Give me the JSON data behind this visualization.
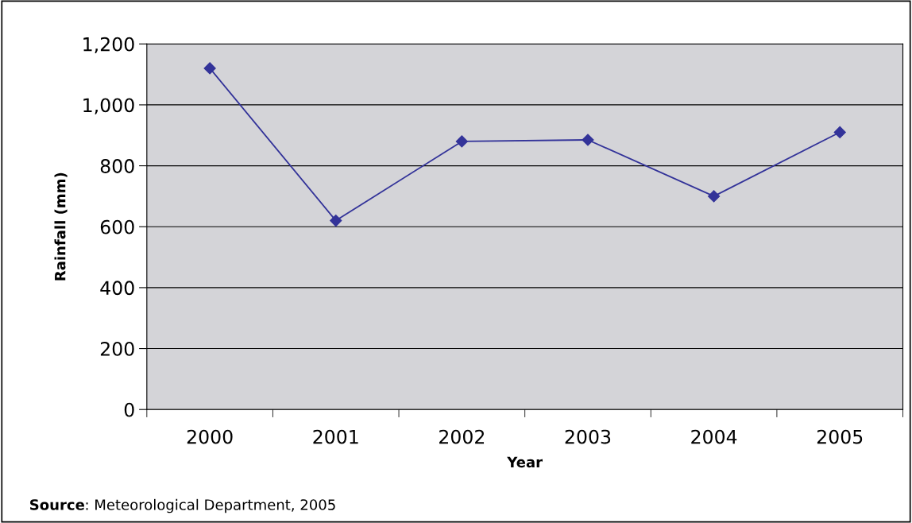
{
  "chart_data": {
    "type": "line",
    "xlabel": "Year",
    "ylabel": "Rainfall (mm)",
    "categories": [
      "2000",
      "2001",
      "2002",
      "2003",
      "2004",
      "2005"
    ],
    "series": [
      {
        "color": "#333399",
        "values": [
          1120,
          620,
          880,
          885,
          700,
          910
        ]
      }
    ],
    "ylim": [
      0,
      1200
    ],
    "yticks": [
      0,
      {
        "value": 200,
        "label": "200"
      },
      {
        "value": 400,
        "label": "400"
      },
      {
        "value": 600,
        "label": "600"
      },
      {
        "value": 800,
        "label": "800"
      },
      {
        "value": 1000,
        "label": "1,000"
      },
      {
        "value": 1200,
        "label": "1,200"
      }
    ],
    "grid": "y",
    "marker": "diamond",
    "line_style": "solid",
    "legend": false,
    "annotations": [
      "Source: Meteorological Department, 2005"
    ]
  }
}
